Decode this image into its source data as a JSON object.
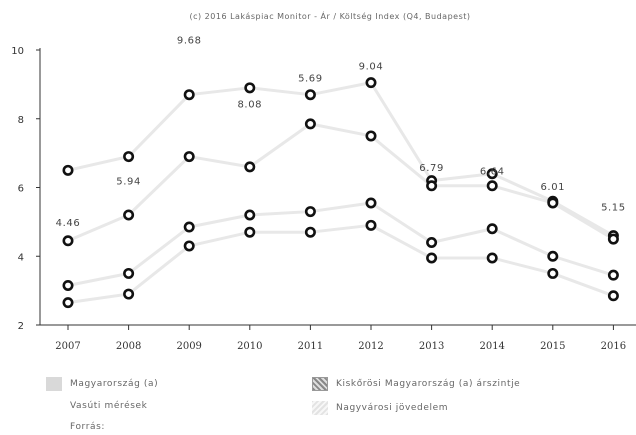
{
  "chart_data": {
    "type": "scatter",
    "title": "(c) 2016 Lakáspiac Monitor - Ár / Költség Index (Q4, Budapest)",
    "ylim": [
      2,
      10
    ],
    "yticks": [
      2,
      4,
      6,
      8,
      10
    ],
    "categories": [
      "2007",
      "2008",
      "2009",
      "2010",
      "2011",
      "2012",
      "2013",
      "2014",
      "2015",
      "2016"
    ],
    "series": [
      {
        "name": "Magyarország (a)",
        "values": [
          6.5,
          6.9,
          8.7,
          8.9,
          8.7,
          9.05,
          6.2,
          6.4,
          5.6,
          4.6
        ]
      },
      {
        "name": "Kiskőrösi Magyarország (a) árszintje",
        "values": [
          4.45,
          5.2,
          6.9,
          6.6,
          7.85,
          7.5,
          6.05,
          6.05,
          5.55,
          4.5
        ]
      },
      {
        "name": "Vasúti mérések",
        "values": [
          3.15,
          3.5,
          4.85,
          5.2,
          5.3,
          5.55,
          4.4,
          4.8,
          4.0,
          3.45
        ]
      },
      {
        "name": "Nagyvárosi jövedelem",
        "values": [
          2.65,
          2.9,
          4.3,
          4.7,
          4.7,
          4.9,
          3.95,
          3.95,
          3.5,
          2.85
        ]
      }
    ],
    "labels": [
      "4.46",
      "5.94",
      "9.68",
      "8.08",
      "5.69",
      "9.04",
      "6.79",
      "6.64",
      "6.01",
      "5.15"
    ],
    "label_y": [
      5.0,
      6.2,
      10.3,
      8.45,
      9.2,
      9.55,
      6.6,
      6.5,
      6.05,
      5.45
    ],
    "trend_series": [
      [
        6.5,
        6.9,
        8.7,
        8.9,
        8.7,
        9.05,
        6.2,
        6.4,
        5.6,
        4.6
      ],
      [
        4.45,
        5.2,
        6.9,
        6.6,
        7.85,
        7.5,
        6.05,
        6.05,
        5.55,
        4.5
      ],
      [
        3.15,
        3.5,
        4.85,
        5.2,
        5.3,
        5.55,
        4.4,
        4.8,
        4.0,
        3.45
      ],
      [
        2.65,
        2.9,
        4.3,
        4.7,
        4.7,
        4.9,
        3.95,
        3.95,
        3.5,
        2.85
      ]
    ],
    "grid": false,
    "legend_position": "bottom"
  },
  "legend": {
    "item1": "Magyarország (a)",
    "item2": "Kiskőrösi Magyarország (a) árszintje",
    "item3": "Vasúti mérések",
    "item4": "Nagyvárosi jövedelem",
    "item5": "Forrás:"
  },
  "colors": {
    "marker": "#111111",
    "trend": "#e8e8e8",
    "axis": "#333333"
  }
}
